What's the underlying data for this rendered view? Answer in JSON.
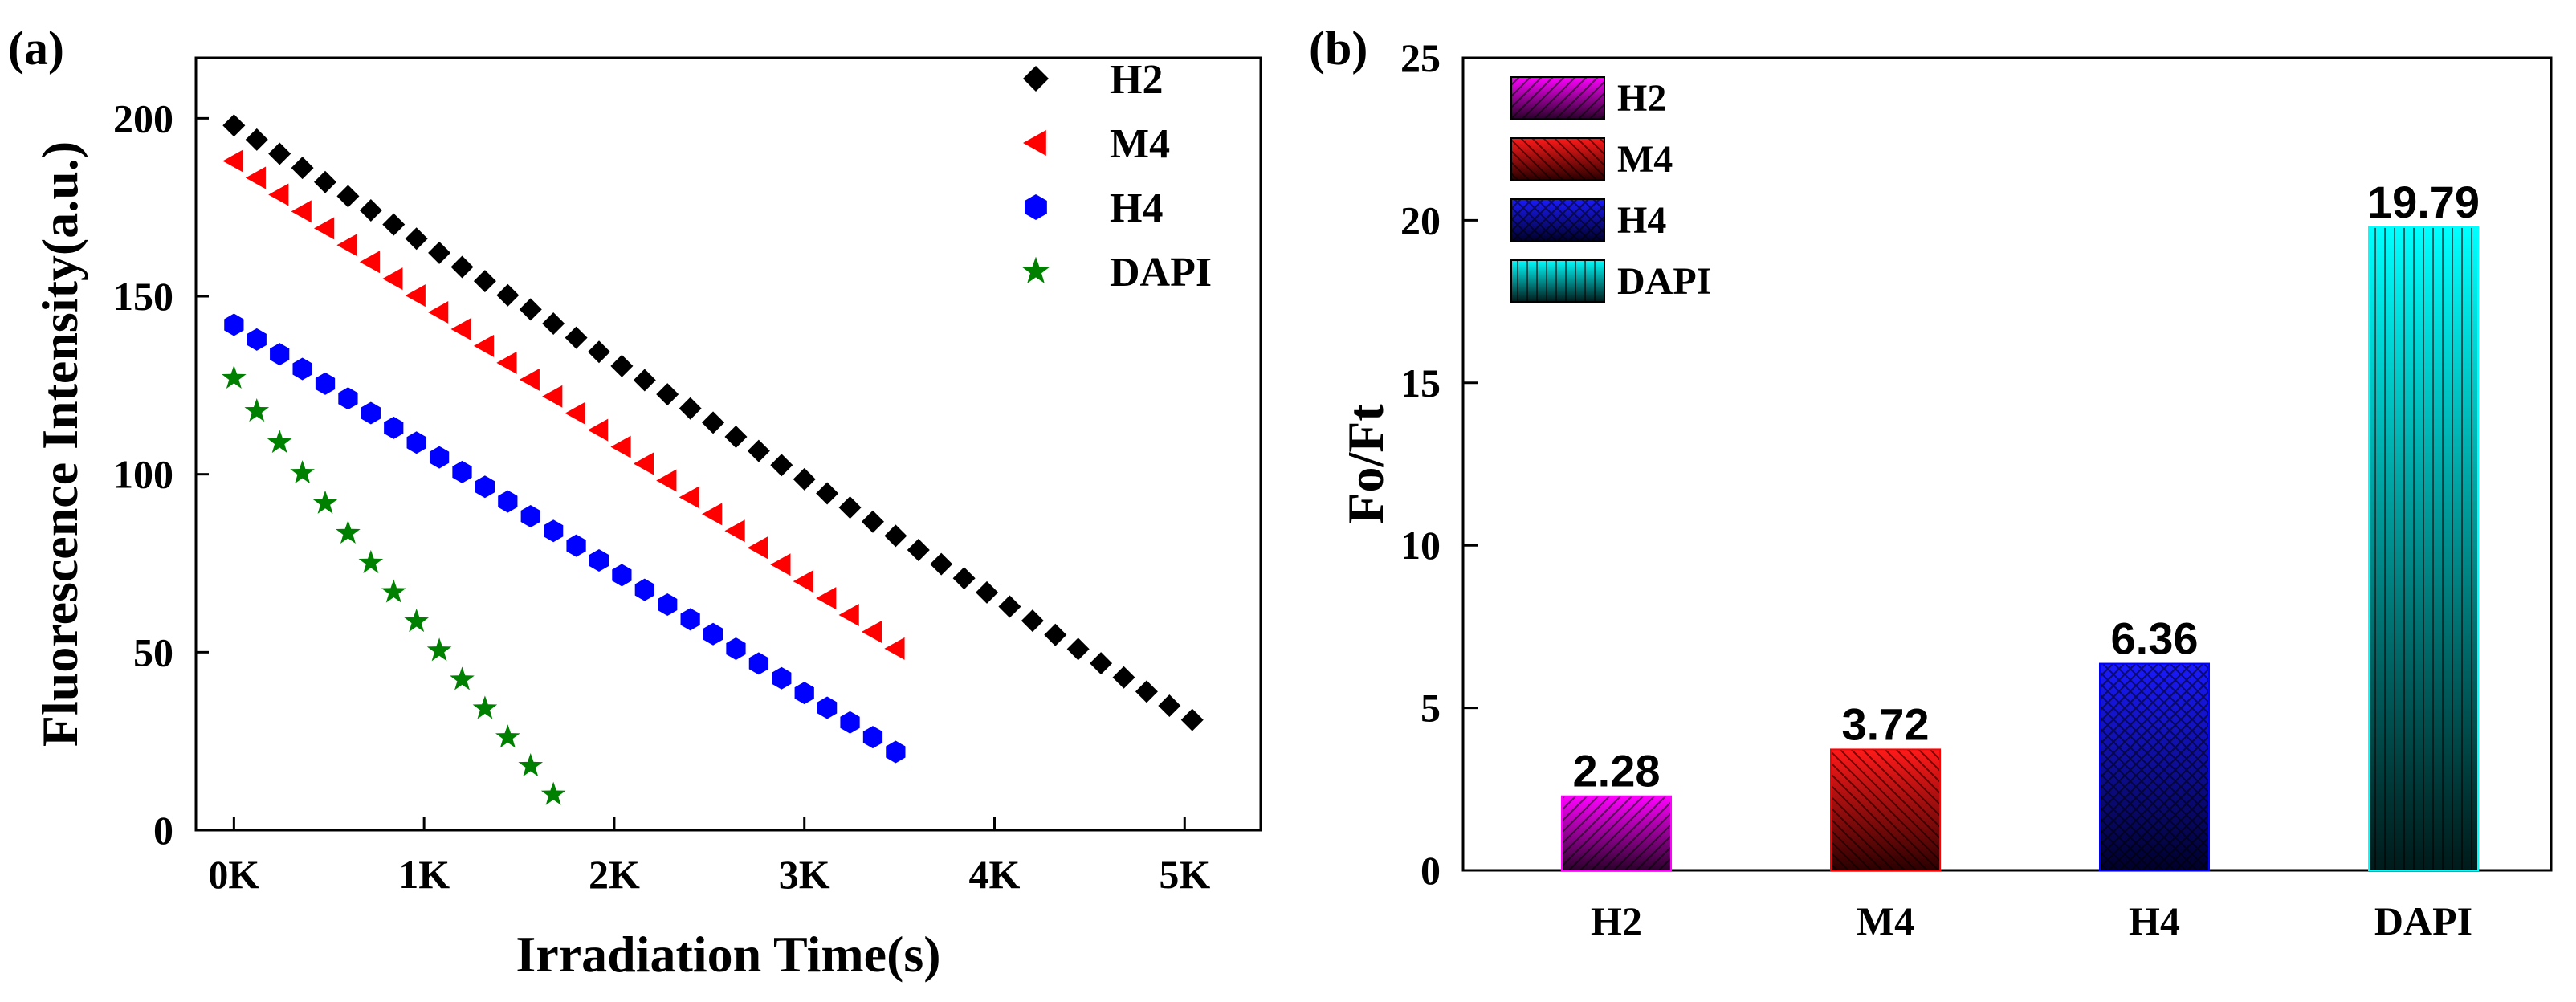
{
  "chart_data": [
    {
      "panel_label": "(a)",
      "type": "scatter",
      "xlabel": "Irradiation Time(s)",
      "ylabel": "Fluorescence Intensity(a.u.)",
      "xlim": [
        -200,
        5400
      ],
      "ylim": [
        0,
        217
      ],
      "xticks": [
        0,
        1000,
        2000,
        3000,
        4000,
        5000
      ],
      "xtick_labels": [
        "0K",
        "1K",
        "2K",
        "3K",
        "4K",
        "5K"
      ],
      "yticks": [
        0,
        50,
        100,
        150,
        200
      ],
      "ytick_labels": [
        "0",
        "50",
        "100",
        "150",
        "200"
      ],
      "legend_position": "top-right",
      "series": [
        {
          "name": "H2",
          "marker": "diamond",
          "color": "#000000",
          "x_start": 0,
          "x_step": 120,
          "count": 43,
          "y_start": 198,
          "y_end": 31
        },
        {
          "name": "M4",
          "marker": "triangle-left",
          "color": "#ff0000",
          "x_start": 0,
          "x_step": 120,
          "count": 30,
          "y_start": 188,
          "y_end": 51
        },
        {
          "name": "H4",
          "marker": "hexagon",
          "color": "#0000ff",
          "x_start": 0,
          "x_step": 120,
          "count": 30,
          "y_start": 142,
          "y_end": 22
        },
        {
          "name": "DAPI",
          "marker": "star",
          "color": "#008000",
          "x_start": 0,
          "x_step": 120,
          "count": 15,
          "y_start": 127,
          "y_end": 10
        }
      ]
    },
    {
      "panel_label": "(b)",
      "type": "bar",
      "ylabel": "Fo/Ft",
      "categories": [
        "H2",
        "M4",
        "H4",
        "DAPI"
      ],
      "values": [
        2.28,
        3.72,
        6.36,
        19.79
      ],
      "value_labels": [
        "2.28",
        "3.72",
        "6.36",
        "19.79"
      ],
      "ylim": [
        0,
        25
      ],
      "yticks": [
        0,
        5,
        10,
        15,
        20,
        25
      ],
      "ytick_labels": [
        "0",
        "5",
        "10",
        "15",
        "20",
        "25"
      ],
      "legend_position": "top-left",
      "colors": [
        "#ff00ff",
        "#ff0000",
        "#0000ff",
        "#00ffff"
      ],
      "patterns": [
        "diagonal-up",
        "diagonal-down",
        "crosshatch",
        "vertical"
      ]
    }
  ]
}
